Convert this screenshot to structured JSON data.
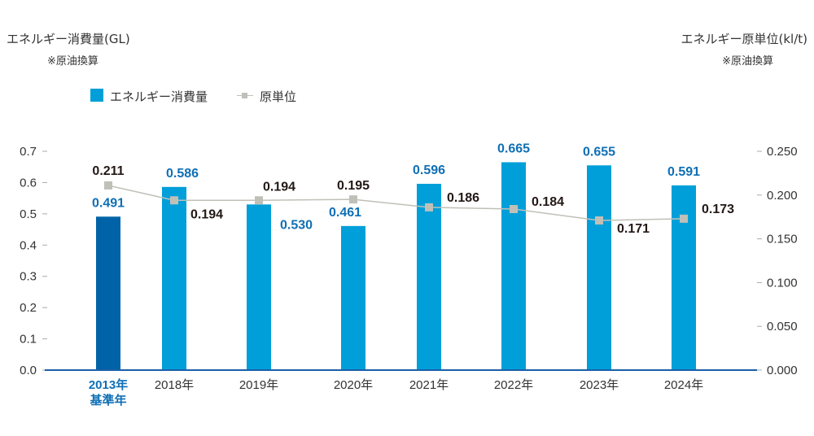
{
  "chart_data": {
    "type": "bar",
    "left_axis_title": "エネルギー消費量(GL)",
    "left_axis_note": "※原油換算",
    "right_axis_title": "エネルギー原単位(kl/t)",
    "right_axis_note": "※原油換算",
    "categories": [
      "2013年",
      "2018年",
      "2019年",
      "2020年",
      "2021年",
      "2022年",
      "2023年",
      "2024年"
    ],
    "base_year_label": "基準年",
    "series": [
      {
        "name": "エネルギー消費量",
        "type": "bar",
        "axis": "left",
        "values": [
          0.491,
          0.586,
          0.53,
          0.461,
          0.596,
          0.665,
          0.655,
          0.591
        ]
      },
      {
        "name": "原単位",
        "type": "line",
        "axis": "right",
        "values": [
          0.211,
          0.194,
          0.194,
          0.195,
          0.186,
          0.184,
          0.171,
          0.173
        ]
      }
    ],
    "left_ylim": [
      0,
      0.7
    ],
    "left_ticks": [
      "0.0",
      "0.1",
      "0.2",
      "0.3",
      "0.4",
      "0.5",
      "0.6",
      "0.7"
    ],
    "right_ylim": [
      0,
      0.25
    ],
    "right_ticks": [
      "0.000",
      "0.050",
      "0.100",
      "0.150",
      "0.200",
      "0.250"
    ],
    "legend_position": "top-left",
    "colors": {
      "bar": "#009fd9",
      "base_bar": "#0063a8",
      "line": "#c0c0b8",
      "bar_label": "#0f6fb5",
      "line_label": "#231815",
      "axis": "#1a5fa8"
    }
  }
}
